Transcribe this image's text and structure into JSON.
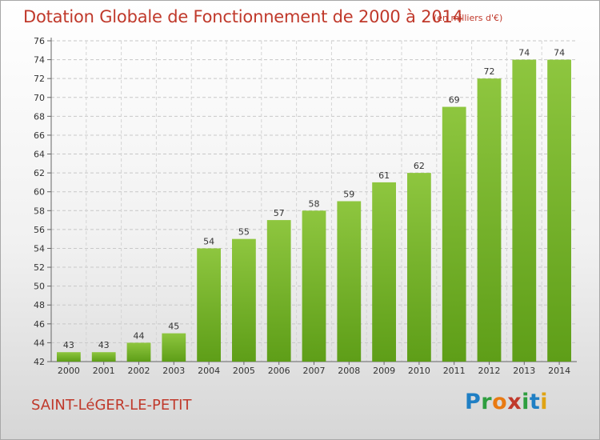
{
  "title": "Dotation Globale de Fonctionnement de 2000 à 2014",
  "unit_note": "(en milliers d'€)",
  "commune": "SAINT-LéGER-LE-PETIT",
  "brand": {
    "letters": [
      "P",
      "r",
      "o",
      "x",
      "i",
      "t",
      "i"
    ],
    "colors": [
      "#1f7fc4",
      "#2e9e3f",
      "#e97a12",
      "#c0392b",
      "#2e9e3f",
      "#1f7fc4",
      "#e0a312"
    ]
  },
  "chart_data": {
    "type": "bar",
    "title": "Dotation Globale de Fonctionnement de 2000 à 2014",
    "subtitle": "(en milliers d'€)",
    "categories": [
      "2000",
      "2001",
      "2002",
      "2003",
      "2004",
      "2005",
      "2006",
      "2007",
      "2008",
      "2009",
      "2010",
      "2011",
      "2012",
      "2013",
      "2014"
    ],
    "values": [
      43,
      43,
      44,
      45,
      54,
      55,
      57,
      58,
      59,
      61,
      62,
      69,
      72,
      74,
      74
    ],
    "ylim": [
      42,
      76
    ],
    "yticks": [
      42,
      44,
      46,
      48,
      50,
      52,
      54,
      56,
      58,
      60,
      62,
      64,
      66,
      68,
      70,
      72,
      74,
      76
    ],
    "grid": true,
    "bar_color_top": "#8ec63f",
    "bar_color_bottom": "#5e9e18"
  }
}
